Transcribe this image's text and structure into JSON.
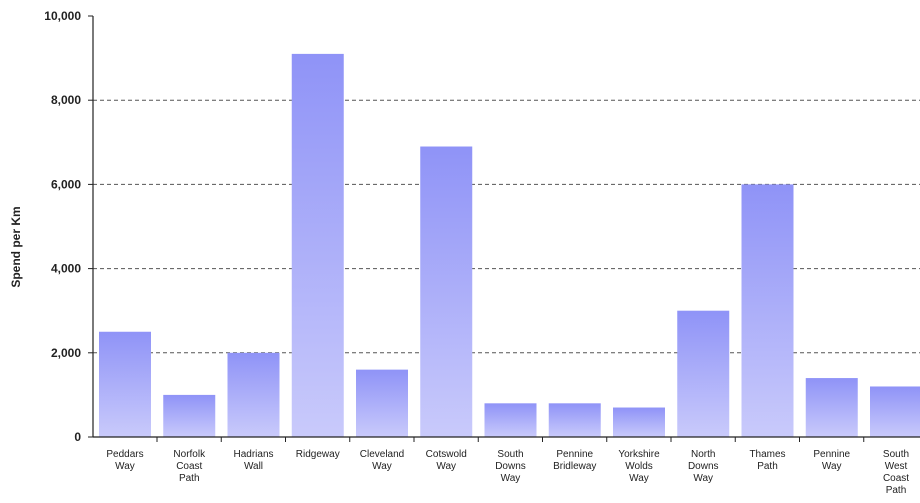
{
  "chart_data": {
    "type": "bar",
    "title": "",
    "xlabel": "",
    "ylabel": "Spend per Km",
    "ylim": [
      0,
      10000
    ],
    "yticks": [
      0,
      2000,
      4000,
      6000,
      8000,
      10000
    ],
    "ytick_labels": [
      "0",
      "2,000",
      "4,000",
      "6,000",
      "8,000",
      "10,000"
    ],
    "grid": "horizontal dashed",
    "categories": [
      [
        "Peddars",
        "Way"
      ],
      [
        "Norfolk",
        "Coast",
        "Path"
      ],
      [
        "Hadrians",
        "Wall"
      ],
      [
        "Ridgeway"
      ],
      [
        "Cleveland",
        "Way"
      ],
      [
        "Cotswold",
        "Way"
      ],
      [
        "South",
        "Downs",
        "Way"
      ],
      [
        "Pennine",
        "Bridleway"
      ],
      [
        "Yorkshire",
        "Wolds",
        "Way"
      ],
      [
        "North",
        "Downs",
        "Way"
      ],
      [
        "Thames",
        "Path"
      ],
      [
        "Pennine",
        "Way"
      ],
      [
        "South",
        "West",
        "Coast",
        "Path"
      ]
    ],
    "values": [
      2500,
      1000,
      2000,
      9100,
      1600,
      6900,
      800,
      800,
      700,
      3000,
      6000,
      1400,
      1200
    ],
    "colors": {
      "bar_top": "#8f93f7",
      "bar_bottom": "#c9cafb",
      "grid": "#555555",
      "axis": "#222222"
    }
  }
}
